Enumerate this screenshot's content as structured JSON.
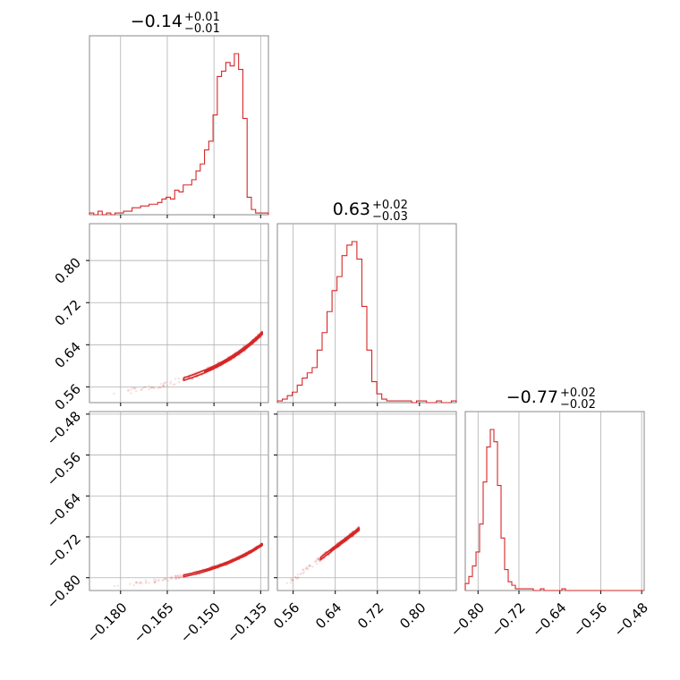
{
  "chart_data": {
    "type": "corner",
    "color": "#d62728",
    "grid": true,
    "parameters": [
      {
        "title": {
          "median": "−0.14",
          "plus": "+0.01",
          "minus": "−0.01"
        },
        "range": [
          -0.19,
          -0.1325
        ],
        "ticks": [
          {
            "value": -0.18,
            "label": "−0.180"
          },
          {
            "value": -0.165,
            "label": "−0.165"
          },
          {
            "value": -0.15,
            "label": "−0.150"
          },
          {
            "value": -0.135,
            "label": "−0.135"
          }
        ],
        "hist": [
          1,
          0,
          2,
          0,
          1,
          0,
          1,
          1,
          2,
          2,
          4,
          4,
          5,
          5,
          6,
          6,
          7,
          9,
          10,
          9,
          14,
          13,
          17,
          17,
          20,
          25,
          29,
          37,
          42,
          57,
          79,
          82,
          87,
          85,
          92,
          83,
          55,
          10,
          3,
          1,
          1,
          1
        ]
      },
      {
        "title": {
          "median": "0.63",
          "plus": "+0.02",
          "minus": "−0.03"
        },
        "range": [
          0.53,
          0.87
        ],
        "ticks": [
          {
            "value": 0.56,
            "label": "0.56"
          },
          {
            "value": 0.64,
            "label": "0.64"
          },
          {
            "value": 0.72,
            "label": "0.72"
          },
          {
            "value": 0.8,
            "label": "0.80"
          }
        ],
        "hist": [
          1,
          2,
          4,
          6,
          10,
          14,
          17,
          20,
          30,
          40,
          52,
          64,
          72,
          84,
          90,
          92,
          82,
          55,
          30,
          12,
          5,
          2,
          1,
          1,
          1,
          1,
          1,
          0,
          1,
          1,
          0,
          0,
          1,
          0,
          0,
          1
        ]
      },
      {
        "title": {
          "median": "−0.77",
          "plus": "+0.02",
          "minus": "−0.02"
        },
        "range": [
          -0.825,
          -0.475
        ],
        "ticks": [
          {
            "value": -0.8,
            "label": "−0.80"
          },
          {
            "value": -0.72,
            "label": "−0.72"
          },
          {
            "value": -0.64,
            "label": "−0.64"
          },
          {
            "value": -0.56,
            "label": "−0.56"
          },
          {
            "value": -0.48,
            "label": "−0.48"
          }
        ],
        "hist": [
          4,
          8,
          14,
          22,
          38,
          62,
          82,
          92,
          85,
          60,
          30,
          12,
          5,
          3,
          1,
          1,
          1,
          1,
          1,
          0,
          0,
          1,
          0,
          0,
          0,
          0,
          0,
          1,
          0,
          0,
          0,
          0,
          0,
          0,
          0,
          0,
          0,
          0,
          0,
          0,
          0,
          0,
          0,
          0,
          0,
          0,
          0,
          0,
          0,
          0
        ]
      }
    ],
    "panels": [
      {
        "row": 1,
        "col": 0,
        "x_param": 0,
        "y_param": 1,
        "curve": "exp",
        "x_range": [
          -0.183,
          -0.1345
        ],
        "y_range": [
          0.548,
          0.662
        ]
      },
      {
        "row": 2,
        "col": 0,
        "x_param": 0,
        "y_param": 2,
        "curve": "exp",
        "x_range": [
          -0.183,
          -0.1345
        ],
        "y_range": [
          -0.815,
          -0.735
        ]
      },
      {
        "row": 2,
        "col": 1,
        "x_param": 1,
        "y_param": 2,
        "curve": "linear",
        "x_range": [
          0.545,
          0.685
        ],
        "y_range": [
          -0.815,
          -0.705
        ]
      }
    ]
  }
}
